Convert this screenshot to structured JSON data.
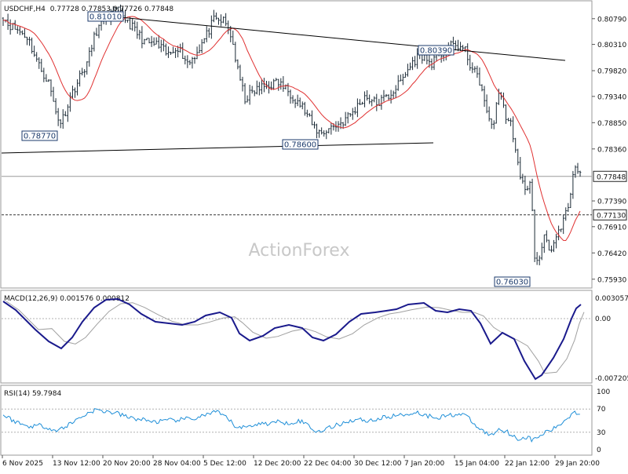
{
  "header": {
    "symbol": "USDCHF,H4",
    "ohlc": "0.77728 0.77853 0.77726 0.77848"
  },
  "watermark": "ActionForex",
  "chart_data": [
    {
      "type": "candlestick",
      "panel": "price",
      "ylim": [
        0.7578,
        0.8108
      ],
      "y_ticks": [
        "0.80790",
        "0.80310",
        "0.79820",
        "0.79340",
        "0.78850",
        "0.78360",
        "0.77390",
        "0.76910",
        "0.76420",
        "0.75930"
      ],
      "current_price_label": "0.77848",
      "support_level_label": "0.77130",
      "annotations": [
        "0.81010",
        "0.78770",
        "0.78600",
        "0.80390",
        "0.76030"
      ],
      "approx_close_path": [
        [
          "6 Nov 2025",
          0.8085
        ],
        [
          "13 Nov 12:00",
          0.788
        ],
        [
          "20 Nov 20:00",
          0.8095
        ],
        [
          "28 Nov 04:00",
          0.8025
        ],
        [
          "5 Dec 12:00",
          0.808
        ],
        [
          "12 Dec 20:00",
          0.794
        ],
        [
          "22 Dec 04:00",
          0.7865
        ],
        [
          "30 Dec 12:00",
          0.7915
        ],
        [
          "7 Jan 20:00",
          0.7985
        ],
        [
          "15 Jan 04:00",
          0.8035
        ],
        [
          "22 Jan 12:00",
          0.7745
        ],
        [
          "29 Jan 20:00",
          0.7785
        ]
      ],
      "moving_average_color": "#e03030",
      "trendline_color": "#000000"
    },
    {
      "type": "line",
      "panel": "macd",
      "label": "MACD(12,26,9) 0.001576 0.000812",
      "y_ticks": [
        "0.003057",
        "0.00",
        "-0.007205"
      ],
      "series_colors": [
        "#1a1a8c",
        "#a0a0a0"
      ]
    },
    {
      "type": "line",
      "panel": "rsi",
      "label": "RSI(14) 59.7984",
      "y_ticks": [
        "100",
        "70",
        "30",
        "0"
      ],
      "series_colors": [
        "#1f8fd8"
      ]
    }
  ],
  "x_axis": {
    "labels": [
      "6 Nov 2025",
      "13 Nov 12:00",
      "20 Nov 20:00",
      "28 Nov 04:00",
      "5 Dec 12:00",
      "12 Dec 20:00",
      "22 Dec 04:00",
      "30 Dec 12:00",
      "7 Jan 20:00",
      "15 Jan 04:00",
      "22 Jan 12:00",
      "29 Jan 20:00"
    ]
  }
}
